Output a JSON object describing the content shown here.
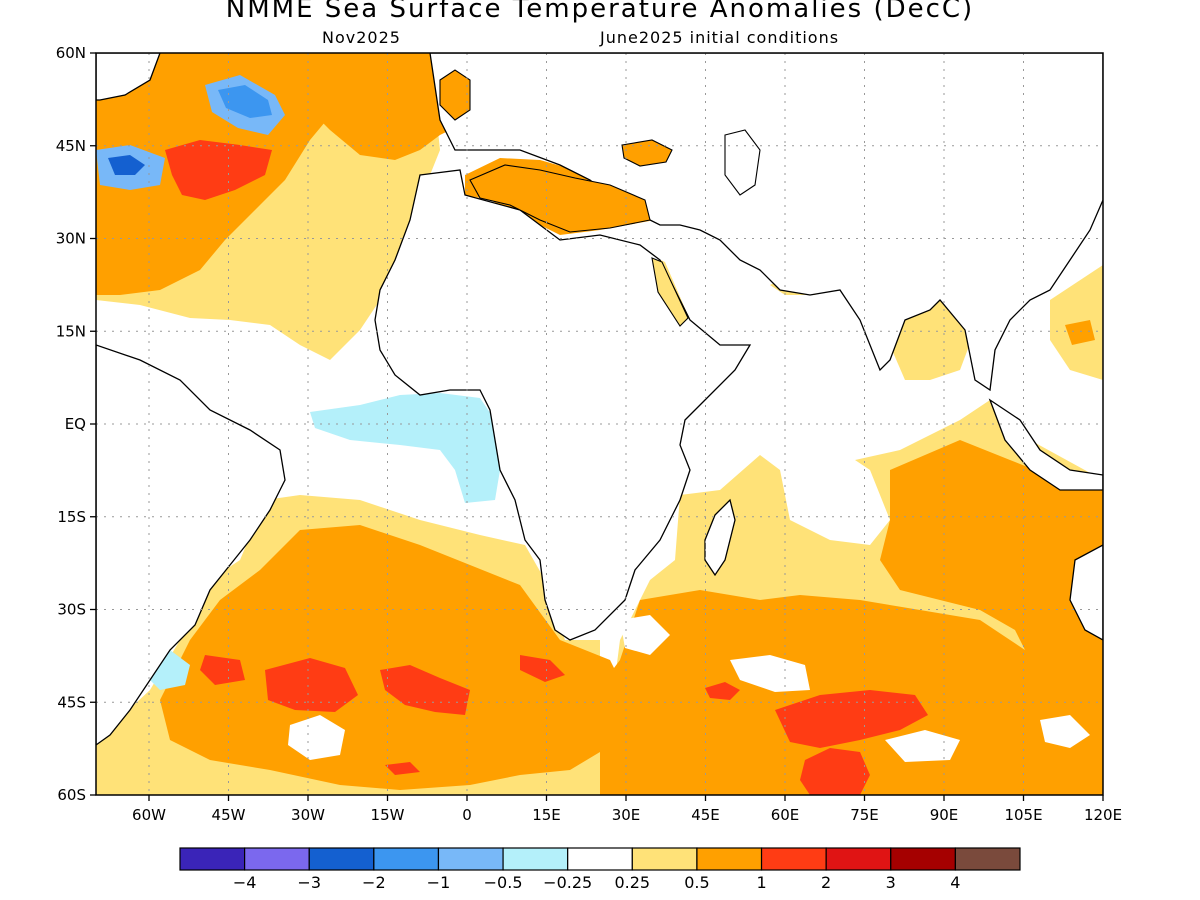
{
  "header": {
    "title": "NMME Sea Surface Temperature Anomalies (DecC)",
    "valid_month": "Nov2025",
    "init": "June2025 initial conditions"
  },
  "map": {
    "lon_range": [
      -70,
      120
    ],
    "lat_range": [
      -60,
      60
    ],
    "lat_ticks": [
      {
        "value": 60,
        "label": "60N"
      },
      {
        "value": 45,
        "label": "45N"
      },
      {
        "value": 30,
        "label": "30N"
      },
      {
        "value": 15,
        "label": "15N"
      },
      {
        "value": 0,
        "label": "EQ"
      },
      {
        "value": -15,
        "label": "15S"
      },
      {
        "value": -30,
        "label": "30S"
      },
      {
        "value": -45,
        "label": "45S"
      },
      {
        "value": -60,
        "label": "60S"
      }
    ],
    "lon_ticks": [
      {
        "value": -60,
        "label": "60W"
      },
      {
        "value": -45,
        "label": "45W"
      },
      {
        "value": -30,
        "label": "30W"
      },
      {
        "value": -15,
        "label": "15W"
      },
      {
        "value": 0,
        "label": "0"
      },
      {
        "value": 15,
        "label": "15E"
      },
      {
        "value": 30,
        "label": "30E"
      },
      {
        "value": 45,
        "label": "45E"
      },
      {
        "value": 60,
        "label": "60E"
      },
      {
        "value": 75,
        "label": "75E"
      },
      {
        "value": 90,
        "label": "90E"
      },
      {
        "value": 105,
        "label": "105E"
      },
      {
        "value": 120,
        "label": "120E"
      }
    ],
    "grid": "dotted"
  },
  "colorbar": {
    "colors": [
      "#3a24b8",
      "#7b68ee",
      "#1460d0",
      "#3c96f0",
      "#78b8f8",
      "#b4f0fa",
      "#ffffff",
      "#ffe278",
      "#ffa000",
      "#ff3c14",
      "#e01414",
      "#a50000",
      "#7a4a3c"
    ],
    "labels": [
      "−4",
      "−3",
      "−2",
      "−1",
      "−0.5",
      "−0.25",
      "0.25",
      "0.5",
      "1",
      "2",
      "3",
      "4"
    ]
  },
  "colors": {
    "light_yellow": "#ffe278",
    "orange": "#ffa000",
    "red": "#ff3c14",
    "light_cyan": "#b4f0fa",
    "light_blue": "#78b8f8",
    "blue": "#3c96f0",
    "dark_blue": "#1460d0",
    "land_outline": "#000000"
  }
}
